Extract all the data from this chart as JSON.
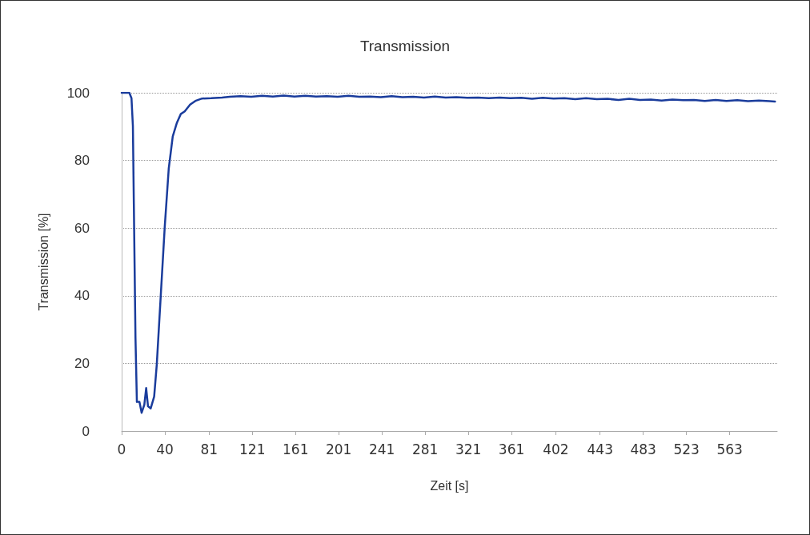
{
  "chart_data": {
    "type": "line",
    "title": "Transmission",
    "xlabel": "Zeit [s]",
    "ylabel": "Transmission [%]",
    "x": [
      0,
      7.1,
      9.1,
      10.4,
      11.6,
      12.8,
      14.1,
      16.5,
      18.5,
      21,
      22.7,
      24.4,
      26.9,
      30.1,
      32.5,
      36.2,
      39.9,
      43.6,
      47.3,
      51,
      54.7,
      58.4,
      63.4,
      68.3,
      74.5,
      83,
      93,
      100,
      110,
      120,
      130,
      140,
      150,
      160,
      170,
      180,
      190,
      200,
      210,
      220,
      230,
      240,
      250,
      260,
      270,
      280,
      290,
      300,
      310,
      320,
      330,
      340,
      350,
      360,
      370,
      380,
      390,
      400,
      410,
      420,
      430,
      440,
      450,
      460,
      470,
      480,
      490,
      500,
      510,
      520,
      530,
      540,
      550,
      560,
      570,
      580,
      590,
      600,
      605
    ],
    "series": [
      {
        "color": "#1a3c9c",
        "values": [
          100,
          100,
          98.4,
          90.2,
          58.8,
          27.5,
          8.6,
          8.6,
          5.4,
          7.8,
          12.7,
          7.3,
          6.7,
          10.2,
          19.6,
          40,
          60.4,
          77.6,
          87.1,
          91,
          93.7,
          94.5,
          96.5,
          97.6,
          98.3,
          98.4,
          98.6,
          98.8,
          99.0,
          98.8,
          99.1,
          98.9,
          99.2,
          98.9,
          99.1,
          98.9,
          99.0,
          98.8,
          99.1,
          98.8,
          98.9,
          98.7,
          99.0,
          98.7,
          98.8,
          98.6,
          98.9,
          98.6,
          98.7,
          98.5,
          98.6,
          98.4,
          98.6,
          98.4,
          98.5,
          98.2,
          98.5,
          98.3,
          98.4,
          98.1,
          98.4,
          98.1,
          98.2,
          97.9,
          98.2,
          97.9,
          98.0,
          97.7,
          98.0,
          97.8,
          97.9,
          97.6,
          97.9,
          97.6,
          97.8,
          97.5,
          97.7,
          97.5,
          97.4
        ]
      }
    ],
    "xlim": [
      0,
      607
    ],
    "xticks": [
      0,
      40,
      81,
      121,
      161,
      201,
      241,
      281,
      321,
      361,
      402,
      443,
      483,
      523,
      563
    ],
    "ylim": [
      0,
      100
    ],
    "yticks": [
      0,
      20,
      40,
      60,
      80,
      100
    ],
    "grid": "y",
    "marker": "none",
    "line_style": "solid"
  }
}
